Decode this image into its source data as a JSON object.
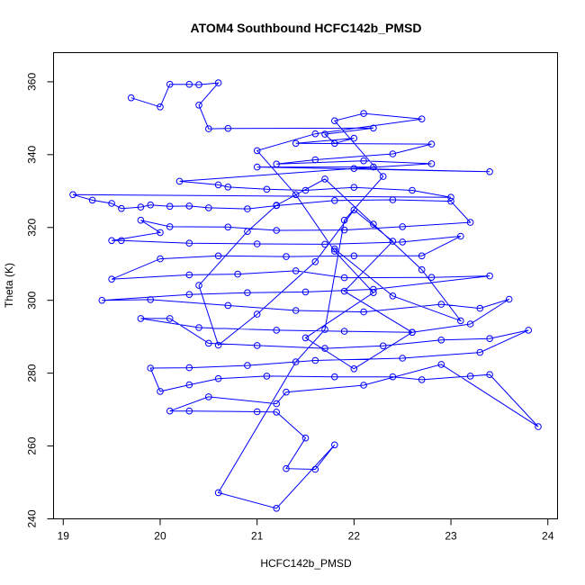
{
  "chart_data": {
    "type": "line",
    "title": "ATOM4 Southbound HCFC142b_PMSD",
    "xlabel": "HCFC142b_PMSD",
    "ylabel": "Theta (K)",
    "xlim": [
      18.9,
      24.1
    ],
    "ylim": [
      240,
      368
    ],
    "xticks": [
      19,
      20,
      21,
      22,
      23,
      24
    ],
    "yticks": [
      240,
      260,
      280,
      300,
      320,
      340,
      360
    ],
    "grid": false,
    "markers": "open-circle",
    "series": [
      {
        "color": "#0000ff",
        "points": [
          [
            19.7,
            355.6
          ],
          [
            20.0,
            353.1
          ],
          [
            20.1,
            359.3
          ],
          [
            20.3,
            359.3
          ],
          [
            20.4,
            359.2
          ],
          [
            20.6,
            359.7
          ],
          [
            20.4,
            353.6
          ],
          [
            20.5,
            347.1
          ],
          [
            20.7,
            347.2
          ],
          [
            22.2,
            347.3
          ],
          [
            21.7,
            345.6
          ],
          [
            21.8,
            343.1
          ],
          [
            22.0,
            344.5
          ],
          [
            21.4,
            343.1
          ],
          [
            22.8,
            342.9
          ],
          [
            22.4,
            340.2
          ],
          [
            21.6,
            338.6
          ],
          [
            21.2,
            337.4
          ],
          [
            22.1,
            338.3
          ],
          [
            22.8,
            337.5
          ],
          [
            22.0,
            336.2
          ],
          [
            23.4,
            335.3
          ],
          [
            21.0,
            336.6
          ],
          [
            22.2,
            336.6
          ],
          [
            20.2,
            332.7
          ],
          [
            20.6,
            331.7
          ],
          [
            20.7,
            331.1
          ],
          [
            21.1,
            330.5
          ],
          [
            21.5,
            330.2
          ],
          [
            22.0,
            331.0
          ],
          [
            22.6,
            330.2
          ],
          [
            23.0,
            328.3
          ],
          [
            19.1,
            329.0
          ],
          [
            19.3,
            327.5
          ],
          [
            19.5,
            326.6
          ],
          [
            19.6,
            325.2
          ],
          [
            19.8,
            325.6
          ],
          [
            19.9,
            326.2
          ],
          [
            20.1,
            325.8
          ],
          [
            20.3,
            325.9
          ],
          [
            20.5,
            325.4
          ],
          [
            20.9,
            325.1
          ],
          [
            21.2,
            326.0
          ],
          [
            21.8,
            327.4
          ],
          [
            22.4,
            327.6
          ],
          [
            23.0,
            327.2
          ],
          [
            23.2,
            321.4
          ],
          [
            22.5,
            320.2
          ],
          [
            21.9,
            319.3
          ],
          [
            21.2,
            319.2
          ],
          [
            20.7,
            320.1
          ],
          [
            20.1,
            320.2
          ],
          [
            19.8,
            322.0
          ],
          [
            20.0,
            318.6
          ],
          [
            19.5,
            316.4
          ],
          [
            19.6,
            316.4
          ],
          [
            20.3,
            315.7
          ],
          [
            21.0,
            315.5
          ],
          [
            21.7,
            315.4
          ],
          [
            22.5,
            316.0
          ],
          [
            23.1,
            317.6
          ],
          [
            22.7,
            312.2
          ],
          [
            22.0,
            312.2
          ],
          [
            21.3,
            312.0
          ],
          [
            20.6,
            312.2
          ],
          [
            20.0,
            311.4
          ],
          [
            19.5,
            305.8
          ],
          [
            20.3,
            307.0
          ],
          [
            20.8,
            307.2
          ],
          [
            21.4,
            308.1
          ],
          [
            21.9,
            306.2
          ],
          [
            22.8,
            306.3
          ],
          [
            23.4,
            306.7
          ],
          [
            22.2,
            303.0
          ],
          [
            21.5,
            302.3
          ],
          [
            20.9,
            302.1
          ],
          [
            20.3,
            301.6
          ],
          [
            19.4,
            300.0
          ],
          [
            19.9,
            300.2
          ],
          [
            20.7,
            298.6
          ],
          [
            21.4,
            297.2
          ],
          [
            22.1,
            296.8
          ],
          [
            22.9,
            298.9
          ],
          [
            23.3,
            297.8
          ],
          [
            23.6,
            300.3
          ],
          [
            23.2,
            293.5
          ],
          [
            22.6,
            291.2
          ],
          [
            21.9,
            291.5
          ],
          [
            21.2,
            291.8
          ],
          [
            20.4,
            292.5
          ],
          [
            19.8,
            295.0
          ],
          [
            20.1,
            295.0
          ],
          [
            20.5,
            288.2
          ],
          [
            21.0,
            287.6
          ],
          [
            21.7,
            286.8
          ],
          [
            22.3,
            287.5
          ],
          [
            22.9,
            289.1
          ],
          [
            23.4,
            289.5
          ],
          [
            23.8,
            291.8
          ],
          [
            23.3,
            285.7
          ],
          [
            22.5,
            284.1
          ],
          [
            21.6,
            283.5
          ],
          [
            20.9,
            282.1
          ],
          [
            20.3,
            281.5
          ],
          [
            19.9,
            281.4
          ],
          [
            20.0,
            275.0
          ],
          [
            20.3,
            276.8
          ],
          [
            20.6,
            278.5
          ],
          [
            21.1,
            279.2
          ],
          [
            21.8,
            279.0
          ],
          [
            22.4,
            279.0
          ],
          [
            22.7,
            278.2
          ],
          [
            23.2,
            279.2
          ],
          [
            23.4,
            279.6
          ],
          [
            23.9,
            265.3
          ],
          [
            22.9,
            282.4
          ],
          [
            22.1,
            276.7
          ],
          [
            21.3,
            274.8
          ],
          [
            21.2,
            271.6
          ],
          [
            20.5,
            273.5
          ],
          [
            20.1,
            269.6
          ],
          [
            20.3,
            269.6
          ],
          [
            21.0,
            269.4
          ],
          [
            21.2,
            269.3
          ],
          [
            21.5,
            262.2
          ],
          [
            21.3,
            253.8
          ],
          [
            21.6,
            253.6
          ],
          [
            21.8,
            260.3
          ],
          [
            21.2,
            242.9
          ],
          [
            20.6,
            247.2
          ],
          [
            21.4,
            283.1
          ],
          [
            21.7,
            292.0
          ],
          [
            21.9,
            322.0
          ],
          [
            22.3,
            334.0
          ],
          [
            21.8,
            349.3
          ],
          [
            22.1,
            351.3
          ],
          [
            22.7,
            349.8
          ],
          [
            21.6,
            345.7
          ],
          [
            21.0,
            341.1
          ],
          [
            21.4,
            329.0
          ],
          [
            21.8,
            313.5
          ],
          [
            22.2,
            302.1
          ],
          [
            21.5,
            289.7
          ],
          [
            22.0,
            281.2
          ],
          [
            22.6,
            291.2
          ],
          [
            21.9,
            302.5
          ],
          [
            22.4,
            316.2
          ],
          [
            22.0,
            324.8
          ],
          [
            21.6,
            310.6
          ],
          [
            21.0,
            296.2
          ],
          [
            20.6,
            287.7
          ],
          [
            20.4,
            304.1
          ],
          [
            20.9,
            318.9
          ],
          [
            21.2,
            326.1
          ],
          [
            21.7,
            333.3
          ],
          [
            22.2,
            320.9
          ],
          [
            22.7,
            308.4
          ],
          [
            23.1,
            294.4
          ],
          [
            22.4,
            301.2
          ],
          [
            21.8,
            314.1
          ]
        ]
      }
    ]
  }
}
